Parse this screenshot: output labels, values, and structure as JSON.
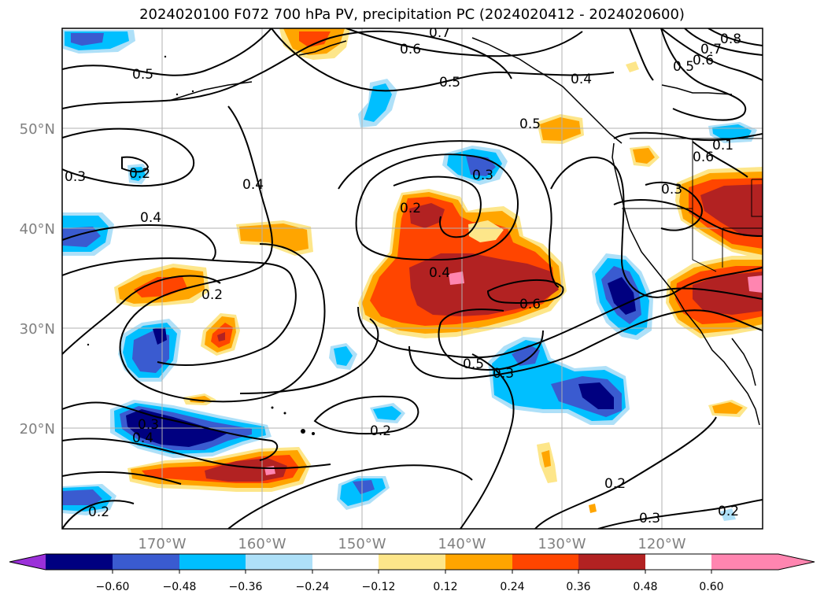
{
  "title": "2024020100 F072 700 hPa PV, precipitation PC (2024020412 - 2024020600)",
  "axes": {
    "lat_labels": [
      "50°N",
      "40°N",
      "30°N",
      "20°N"
    ],
    "lon_labels": [
      "170°W",
      "160°W",
      "150°W",
      "140°W",
      "130°W",
      "120°W"
    ]
  },
  "colorbar": {
    "colors": [
      "#9b30d9",
      "#000080",
      "#3a5bd0",
      "#00bfff",
      "#aee0f8",
      "#ffffff",
      "#fde68a",
      "#ffa500",
      "#ff4500",
      "#b22222",
      "#ff85b0"
    ],
    "tick_labels": [
      "−0.60",
      "−0.48",
      "−0.36",
      "−0.24",
      "−0.12",
      "0.12",
      "0.24",
      "0.36",
      "0.48",
      "0.60"
    ]
  },
  "contour_labels": [
    "0.7",
    "0.6",
    "0.5",
    "0.5",
    "0.4",
    "0.8",
    "0.7",
    "0.6",
    "0.5",
    "0.5",
    "0.3",
    "0.2",
    "0.4",
    "0.4",
    "0.3",
    "0.2",
    "0.4",
    "0.6",
    "0.1",
    "0.6",
    "0.3",
    "0.2",
    "0.5",
    "0.3",
    "0.2",
    "0.3",
    "0.4",
    "0.2",
    "0.2",
    "0.3",
    "0.2"
  ],
  "palette": {
    "contour": "#000000",
    "coast": "#000000",
    "grid": "#b0b0b0",
    "axis_text": "#808080"
  }
}
